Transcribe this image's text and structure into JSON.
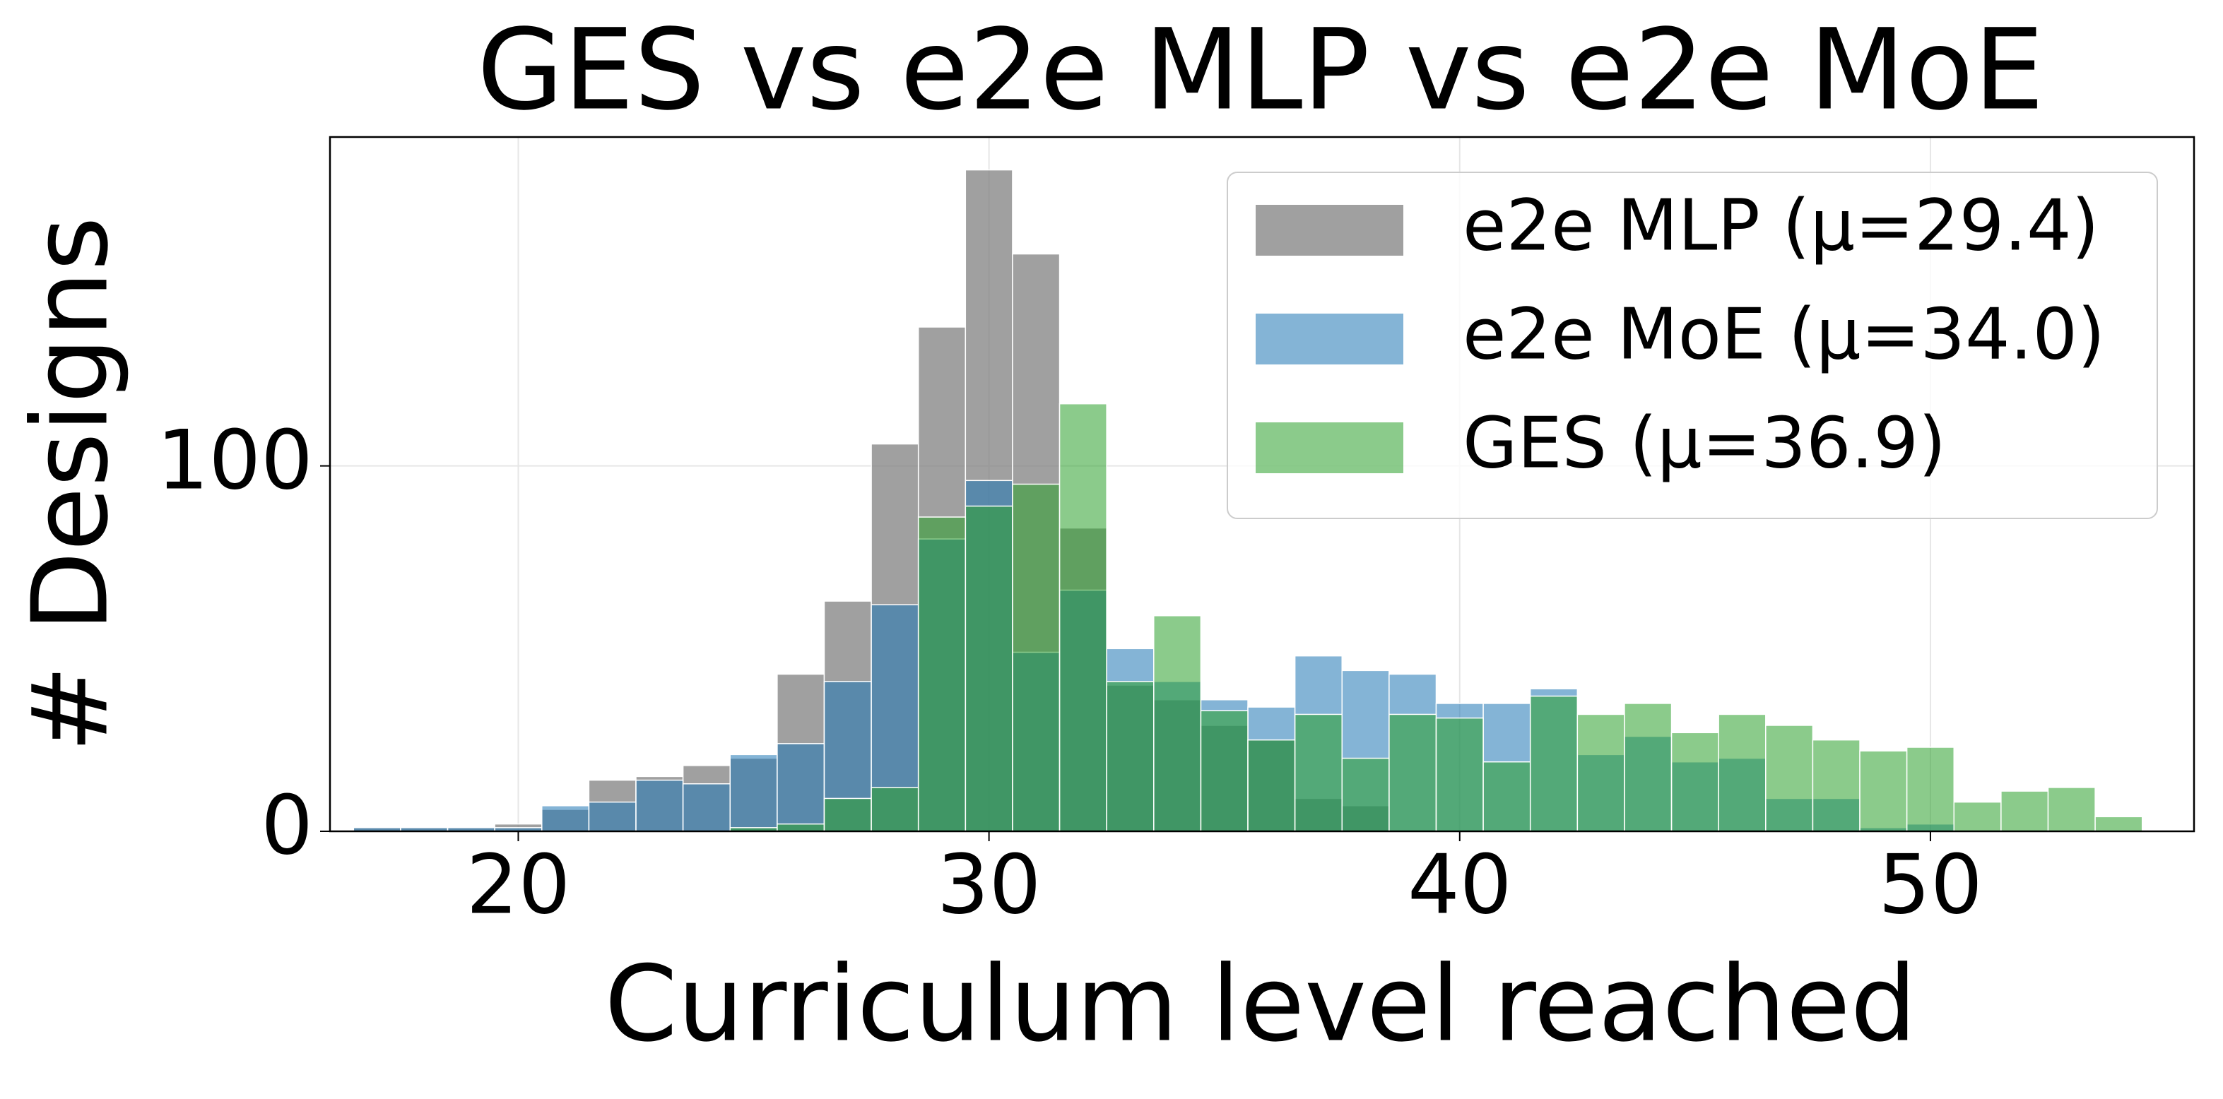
{
  "chart_data": {
    "type": "histogram",
    "title": "GES vs e2e MLP vs e2e MoE",
    "x_label": "Curriculum level reached",
    "y_label": "# Designs",
    "bins": [
      16.5,
      17.5,
      18.5,
      19.5,
      20.5,
      21.5,
      22.5,
      23.5,
      24.5,
      25.5,
      26.5,
      27.5,
      28.5,
      29.5,
      30.5,
      31.5,
      32.5,
      33.5,
      34.5,
      35.5,
      36.5,
      37.5,
      38.5,
      39.5,
      40.5,
      41.5,
      42.5,
      43.5,
      44.5,
      45.5,
      46.5,
      47.5,
      48.5,
      49.5,
      50.5,
      51.5,
      52.5,
      53.5,
      54.5
    ],
    "series": [
      {
        "name": "e2e MLP (μ=29.4)",
        "color": "#808080",
        "values": [
          1,
          1,
          1,
          2,
          6,
          14,
          15,
          18,
          20,
          43,
          63,
          106,
          138,
          181,
          158,
          83,
          40,
          36,
          29,
          25,
          9,
          7,
          0,
          0,
          0,
          0,
          0,
          0,
          0,
          0,
          0,
          0,
          0,
          0,
          0,
          0,
          0,
          0
        ]
      },
      {
        "name": "e2e MoE (μ=34.0)",
        "color": "#1f77b4",
        "values": [
          1,
          1,
          1,
          1,
          7,
          8,
          14,
          13,
          21,
          24,
          41,
          62,
          80,
          96,
          49,
          66,
          50,
          41,
          36,
          34,
          48,
          44,
          43,
          35,
          35,
          39,
          21,
          26,
          19,
          20,
          9,
          9,
          1,
          2,
          0,
          0,
          0,
          0
        ]
      },
      {
        "name": "GES (μ=36.9)",
        "color": "#2ca02c",
        "values": [
          0,
          0,
          0,
          0,
          0,
          0,
          0,
          0,
          1,
          2,
          9,
          12,
          86,
          89,
          95,
          117,
          41,
          59,
          33,
          25,
          32,
          20,
          32,
          31,
          19,
          37,
          32,
          35,
          27,
          32,
          29,
          25,
          22,
          23,
          8,
          11,
          12,
          4
        ]
      }
    ],
    "xlim": [
      16,
      55.6
    ],
    "ylim": [
      0,
      190
    ],
    "xticks": [
      20,
      30,
      40,
      50
    ],
    "yticks": [
      0,
      100
    ],
    "grid": true,
    "legend": "upper right"
  }
}
